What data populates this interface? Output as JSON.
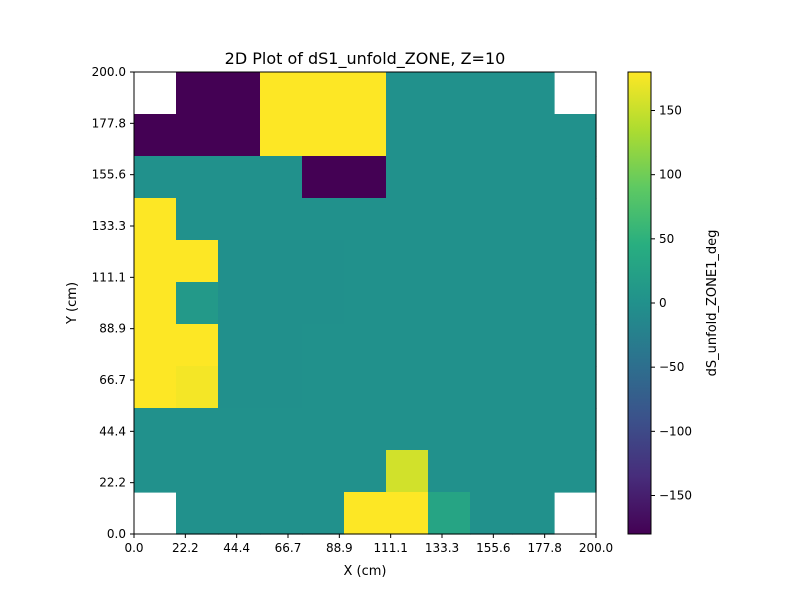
{
  "chart_data": {
    "type": "heatmap",
    "title": "2D Plot of dS1_unfold_ZONE, Z=10",
    "xlabel": "X (cm)",
    "ylabel": "Y (cm)",
    "colorbar_label": "dS_unfold_ZONE1_deg",
    "xlim": [
      0.0,
      200.0
    ],
    "ylim": [
      0.0,
      200.0
    ],
    "x_ticks": [
      "0.0",
      "22.2",
      "44.4",
      "66.7",
      "88.9",
      "111.1",
      "133.3",
      "155.6",
      "177.8",
      "200.0"
    ],
    "y_ticks": [
      "0.0",
      "22.2",
      "44.4",
      "66.7",
      "88.9",
      "111.1",
      "133.3",
      "155.6",
      "177.8",
      "200.0"
    ],
    "colorbar_ticks": [
      "150",
      "100",
      "50",
      "0",
      "−50",
      "−100",
      "−150"
    ],
    "colorbar_tick_values": [
      150,
      100,
      50,
      0,
      -50,
      -100,
      -150
    ],
    "vmin": -180,
    "vmax": 180,
    "colormap": "viridis",
    "grid": false,
    "note_rows": "rows listed top (y=177.8-200) to bottom (y=0-22.2); columns left (x=0) to right (x=200); null = no data",
    "values": [
      [
        null,
        -180,
        -180,
        180,
        180,
        180,
        0,
        0,
        0,
        0,
        null
      ],
      [
        -180,
        -180,
        -180,
        180,
        180,
        180,
        0,
        0,
        0,
        0,
        0
      ],
      [
        0,
        0,
        0,
        0,
        -180,
        -180,
        0,
        0,
        0,
        0,
        0
      ],
      [
        180,
        0,
        0,
        0,
        0,
        0,
        0,
        0,
        0,
        0,
        0
      ],
      [
        180,
        180,
        -2,
        -2,
        -1,
        0,
        0,
        0,
        0,
        0,
        0
      ],
      [
        180,
        12,
        -1,
        -1,
        -1,
        0,
        0,
        0,
        0,
        0,
        0
      ],
      [
        180,
        180,
        -2,
        -2,
        0,
        0,
        0,
        0,
        0,
        0,
        0
      ],
      [
        180,
        175,
        -2,
        -2,
        0,
        0,
        0,
        0,
        0,
        0,
        0
      ],
      [
        0,
        0,
        0,
        0,
        0,
        0,
        0,
        0,
        0,
        0,
        0
      ],
      [
        0,
        0,
        0,
        0,
        0,
        0,
        155,
        0,
        0,
        0,
        0
      ],
      [
        null,
        0,
        0,
        0,
        0,
        180,
        180,
        30,
        0,
        0,
        null
      ]
    ]
  }
}
